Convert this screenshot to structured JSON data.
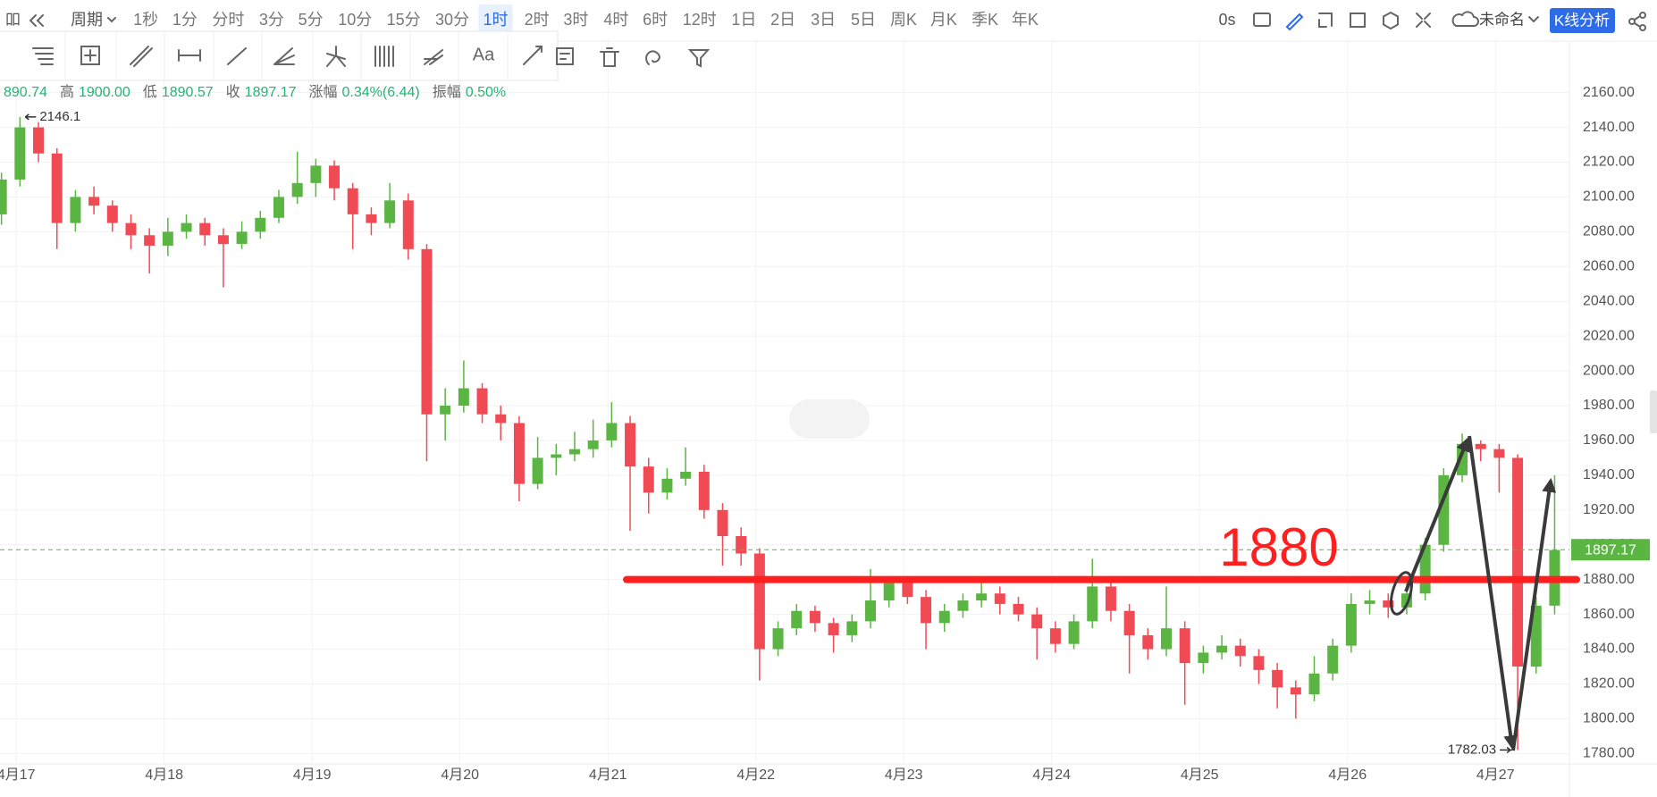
{
  "toolbar": {
    "period_menu": "周期",
    "periods": [
      "1秒",
      "1分",
      "分时",
      "3分",
      "5分",
      "10分",
      "15分",
      "30分",
      "1时",
      "2时",
      "3时",
      "4时",
      "6时",
      "12时",
      "1日",
      "2日",
      "3日",
      "5日",
      "周K",
      "月K",
      "季K",
      "年K"
    ],
    "active_period": 8,
    "timer": "0s",
    "layout_name": "未命名",
    "analysis_button": "K线分析"
  },
  "drawing_tools": {
    "text_tool": "Aa"
  },
  "info_bar": [
    {
      "value": "890.74"
    },
    {
      "label": "高",
      "value": "1900.00"
    },
    {
      "label": "低",
      "value": "1890.57"
    },
    {
      "label": "收",
      "value": "1897.17"
    },
    {
      "label": "涨幅",
      "value": "0.34%(6.44)"
    },
    {
      "label": "振幅",
      "value": "0.50%"
    }
  ],
  "chart_data": {
    "type": "candlestick",
    "up_color": "#5bb543",
    "down_color": "#f04b55",
    "grid": true,
    "x": [
      -0.1,
      0.025,
      0.15,
      0.275,
      0.4,
      0.525,
      0.65,
      0.775,
      0.9,
      1.025,
      1.15,
      1.275,
      1.4,
      1.525,
      1.65,
      1.775,
      1.9,
      2.025,
      2.15,
      2.275,
      2.4,
      2.525,
      2.65,
      2.775,
      2.9,
      3.025,
      3.15,
      3.275,
      3.4,
      3.525,
      3.65,
      3.775,
      3.9,
      4.025,
      4.15,
      4.275,
      4.4,
      4.525,
      4.65,
      4.775,
      4.9,
      5.025,
      5.15,
      5.275,
      5.4,
      5.525,
      5.65,
      5.775,
      5.9,
      6.025,
      6.15,
      6.275,
      6.4,
      6.525,
      6.65,
      6.775,
      6.9,
      7.025,
      7.15,
      7.275,
      7.4,
      7.525,
      7.65,
      7.775,
      7.9,
      8.025,
      8.15,
      8.275,
      8.4,
      8.525,
      8.65,
      8.775,
      8.9,
      9.025,
      9.15,
      9.275,
      9.4,
      9.525,
      9.65,
      9.775,
      9.9,
      10.025,
      10.15,
      10.275,
      10.4
    ],
    "values": [
      [
        2090,
        2114,
        2084,
        2110
      ],
      [
        2110,
        2146,
        2106,
        2140
      ],
      [
        2140,
        2143,
        2120,
        2125
      ],
      [
        2125,
        2128,
        2070,
        2085
      ],
      [
        2085,
        2104,
        2080,
        2100
      ],
      [
        2100,
        2106,
        2090,
        2095
      ],
      [
        2095,
        2098,
        2080,
        2085
      ],
      [
        2085,
        2090,
        2070,
        2078
      ],
      [
        2078,
        2082,
        2056,
        2072
      ],
      [
        2072,
        2088,
        2066,
        2080
      ],
      [
        2080,
        2090,
        2076,
        2085
      ],
      [
        2085,
        2088,
        2072,
        2078
      ],
      [
        2078,
        2082,
        2048,
        2073
      ],
      [
        2073,
        2086,
        2070,
        2080
      ],
      [
        2080,
        2092,
        2076,
        2088
      ],
      [
        2088,
        2104,
        2085,
        2100
      ],
      [
        2100,
        2126,
        2096,
        2108
      ],
      [
        2108,
        2122,
        2100,
        2118
      ],
      [
        2118,
        2121,
        2098,
        2105
      ],
      [
        2105,
        2108,
        2070,
        2090
      ],
      [
        2090,
        2094,
        2078,
        2085
      ],
      [
        2085,
        2108,
        2082,
        2098
      ],
      [
        2098,
        2102,
        2064,
        2070
      ],
      [
        2070,
        2073,
        1948,
        1975
      ],
      [
        1975,
        1990,
        1960,
        1980
      ],
      [
        1980,
        2006,
        1976,
        1990
      ],
      [
        1990,
        1993,
        1970,
        1975
      ],
      [
        1975,
        1980,
        1960,
        1970
      ],
      [
        1970,
        1974,
        1925,
        1935
      ],
      [
        1935,
        1962,
        1932,
        1950
      ],
      [
        1950,
        1958,
        1940,
        1952
      ],
      [
        1952,
        1965,
        1948,
        1955
      ],
      [
        1955,
        1972,
        1950,
        1960
      ],
      [
        1960,
        1982,
        1956,
        1970
      ],
      [
        1970,
        1974,
        1908,
        1945
      ],
      [
        1945,
        1950,
        1918,
        1930
      ],
      [
        1930,
        1944,
        1926,
        1938
      ],
      [
        1938,
        1956,
        1934,
        1942
      ],
      [
        1942,
        1946,
        1915,
        1920
      ],
      [
        1920,
        1924,
        1888,
        1905
      ],
      [
        1905,
        1910,
        1888,
        1895
      ],
      [
        1895,
        1898,
        1822,
        1840
      ],
      [
        1840,
        1856,
        1836,
        1852
      ],
      [
        1852,
        1866,
        1848,
        1862
      ],
      [
        1862,
        1865,
        1850,
        1855
      ],
      [
        1855,
        1858,
        1838,
        1848
      ],
      [
        1848,
        1860,
        1844,
        1856
      ],
      [
        1856,
        1886,
        1852,
        1868
      ],
      [
        1868,
        1882,
        1864,
        1878
      ],
      [
        1878,
        1882,
        1866,
        1870
      ],
      [
        1870,
        1874,
        1840,
        1855
      ],
      [
        1855,
        1866,
        1850,
        1862
      ],
      [
        1862,
        1872,
        1858,
        1868
      ],
      [
        1868,
        1882,
        1864,
        1872
      ],
      [
        1872,
        1876,
        1860,
        1866
      ],
      [
        1866,
        1870,
        1856,
        1860
      ],
      [
        1860,
        1864,
        1834,
        1852
      ],
      [
        1852,
        1856,
        1838,
        1843
      ],
      [
        1843,
        1860,
        1840,
        1856
      ],
      [
        1856,
        1892,
        1852,
        1876
      ],
      [
        1876,
        1880,
        1856,
        1862
      ],
      [
        1862,
        1866,
        1826,
        1848
      ],
      [
        1848,
        1852,
        1834,
        1840
      ],
      [
        1840,
        1876,
        1836,
        1852
      ],
      [
        1852,
        1856,
        1808,
        1832
      ],
      [
        1832,
        1842,
        1826,
        1838
      ],
      [
        1838,
        1848,
        1834,
        1842
      ],
      [
        1842,
        1846,
        1830,
        1836
      ],
      [
        1836,
        1840,
        1820,
        1828
      ],
      [
        1828,
        1832,
        1806,
        1818
      ],
      [
        1818,
        1822,
        1800,
        1814
      ],
      [
        1814,
        1836,
        1810,
        1826
      ],
      [
        1826,
        1846,
        1822,
        1842
      ],
      [
        1842,
        1872,
        1838,
        1866
      ],
      [
        1866,
        1874,
        1860,
        1868
      ],
      [
        1868,
        1872,
        1858,
        1864
      ],
      [
        1864,
        1880,
        1860,
        1872
      ],
      [
        1872,
        1904,
        1868,
        1900
      ],
      [
        1900,
        1944,
        1896,
        1940
      ],
      [
        1940,
        1964,
        1936,
        1958
      ],
      [
        1958,
        1960,
        1948,
        1955
      ],
      [
        1955,
        1958,
        1930,
        1950
      ],
      [
        1950,
        1952,
        1782,
        1830
      ],
      [
        1830,
        1870,
        1826,
        1865
      ],
      [
        1865,
        1940,
        1860,
        1897
      ]
    ],
    "xlim": [
      -0.11,
      10.5
    ],
    "xticks": [
      {
        "value": 0,
        "label": "4月17"
      },
      {
        "value": 1,
        "label": "4月18"
      },
      {
        "value": 2,
        "label": "4月19"
      },
      {
        "value": 3,
        "label": "4月20"
      },
      {
        "value": 4,
        "label": "4月21"
      },
      {
        "value": 5,
        "label": "4月22"
      },
      {
        "value": 6,
        "label": "4月23"
      },
      {
        "value": 7,
        "label": "4月24"
      },
      {
        "value": 8,
        "label": "4月25"
      },
      {
        "value": 9,
        "label": "4月26"
      },
      {
        "value": 10,
        "label": "4月27"
      }
    ],
    "ylim": [
      1774,
      2167
    ],
    "yticks": [
      {
        "value": 1780,
        "label": "1780.00"
      },
      {
        "value": 1800,
        "label": "1800.00"
      },
      {
        "value": 1820,
        "label": "1820.00"
      },
      {
        "value": 1840,
        "label": "1840.00"
      },
      {
        "value": 1860,
        "label": "1860.00"
      },
      {
        "value": 1880,
        "label": "1880.00"
      },
      {
        "value": 1900,
        "label": "1900.00"
      },
      {
        "value": 1920,
        "label": "1920.00"
      },
      {
        "value": 1940,
        "label": "1940.00"
      },
      {
        "value": 1960,
        "label": "1960.00"
      },
      {
        "value": 1980,
        "label": "1980.00"
      },
      {
        "value": 2000,
        "label": "2000.00"
      },
      {
        "value": 2020,
        "label": "2020.00"
      },
      {
        "value": 2040,
        "label": "2040.00"
      },
      {
        "value": 2060,
        "label": "2060.00"
      },
      {
        "value": 2080,
        "label": "2080.00"
      },
      {
        "value": 2100,
        "label": "2100.00"
      },
      {
        "value": 2120,
        "label": "2120.00"
      },
      {
        "value": 2140,
        "label": "2140.00"
      },
      {
        "value": 2160,
        "label": "2160.00"
      }
    ],
    "last_price": {
      "value": 1897.17,
      "label": "1897.17",
      "color": "#5bb543"
    },
    "hline": {
      "value": 1880,
      "label": "1880",
      "color": "#ff1f1f"
    },
    "annotations": {
      "max_label": "2146.1",
      "min_label": "1782.03"
    }
  }
}
